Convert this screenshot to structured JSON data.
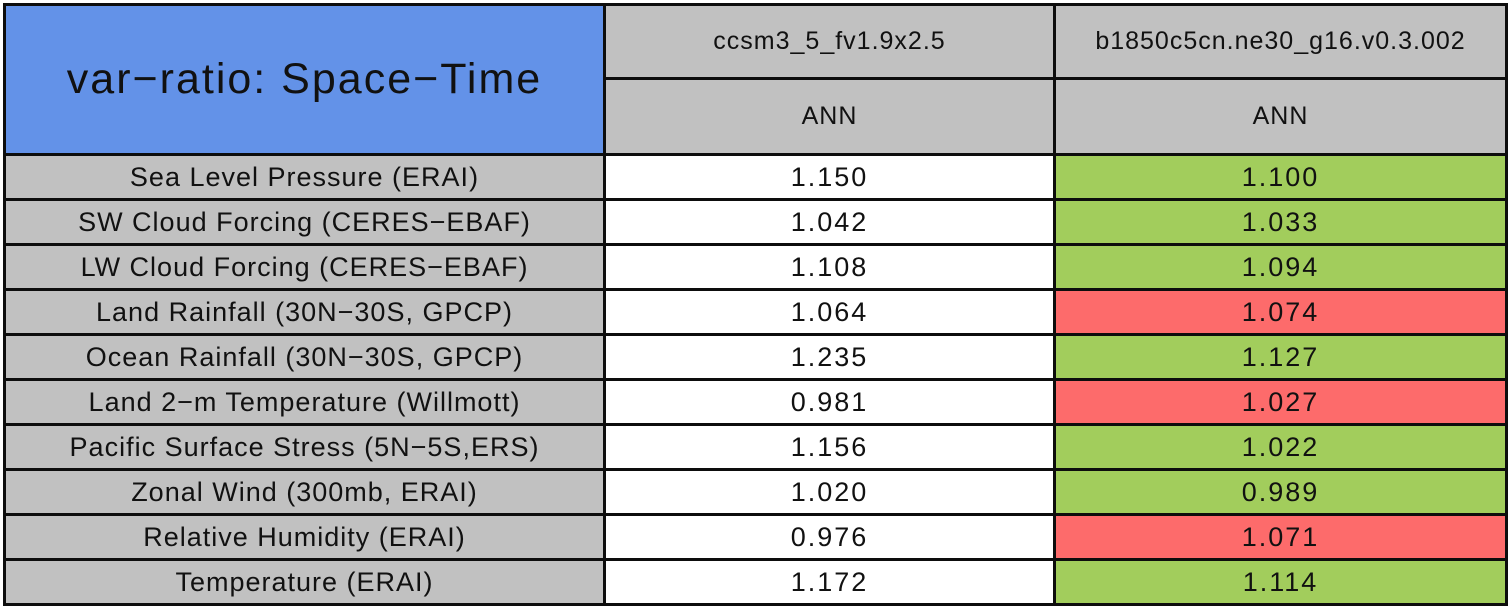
{
  "chart_data": {
    "type": "table",
    "title": "var−ratio: Space−Time",
    "column_headers": {
      "row_label_column": "",
      "models": [
        "ccsm3_5_fv1.9x2.5",
        "b1850c5cn.ne30_g16.v0.3.002"
      ],
      "seasons": [
        "ANN",
        "ANN"
      ]
    },
    "rows": [
      {
        "label": "Sea Level Pressure (ERAI)",
        "model1": {
          "value": "1.150",
          "status": "white"
        },
        "model2": {
          "value": "1.100",
          "status": "green"
        }
      },
      {
        "label": "SW Cloud Forcing (CERES−EBAF)",
        "model1": {
          "value": "1.042",
          "status": "white"
        },
        "model2": {
          "value": "1.033",
          "status": "green"
        }
      },
      {
        "label": "LW Cloud Forcing (CERES−EBAF)",
        "model1": {
          "value": "1.108",
          "status": "white"
        },
        "model2": {
          "value": "1.094",
          "status": "green"
        }
      },
      {
        "label": "Land Rainfall (30N−30S, GPCP)",
        "model1": {
          "value": "1.064",
          "status": "white"
        },
        "model2": {
          "value": "1.074",
          "status": "red"
        }
      },
      {
        "label": "Ocean Rainfall (30N−30S, GPCP)",
        "model1": {
          "value": "1.235",
          "status": "white"
        },
        "model2": {
          "value": "1.127",
          "status": "green"
        }
      },
      {
        "label": "Land 2−m Temperature (Willmott)",
        "model1": {
          "value": "0.981",
          "status": "white"
        },
        "model2": {
          "value": "1.027",
          "status": "red"
        }
      },
      {
        "label": "Pacific Surface Stress (5N−5S,ERS)",
        "model1": {
          "value": "1.156",
          "status": "white"
        },
        "model2": {
          "value": "1.022",
          "status": "green"
        }
      },
      {
        "label": "Zonal Wind (300mb, ERAI)",
        "model1": {
          "value": "1.020",
          "status": "white"
        },
        "model2": {
          "value": "0.989",
          "status": "green"
        }
      },
      {
        "label": "Relative Humidity (ERAI)",
        "model1": {
          "value": "0.976",
          "status": "white"
        },
        "model2": {
          "value": "1.071",
          "status": "red"
        }
      },
      {
        "label": "Temperature (ERAI)",
        "model1": {
          "value": "1.172",
          "status": "white"
        },
        "model2": {
          "value": "1.114",
          "status": "green"
        }
      }
    ],
    "colors": {
      "title_background": "#6392e8",
      "header_background": "#c1c1c1",
      "label_background": "#c1c1c1",
      "neutral_cell": "#ffffff",
      "better_cell_green": "#a2cd5c",
      "worse_cell_red": "#fd6b6b",
      "grid_line": "#0d0d0d",
      "text": "#111111"
    },
    "legend_semantics": {
      "green": "value closer to observations than first model",
      "red": "value farther from observations than first model"
    }
  }
}
